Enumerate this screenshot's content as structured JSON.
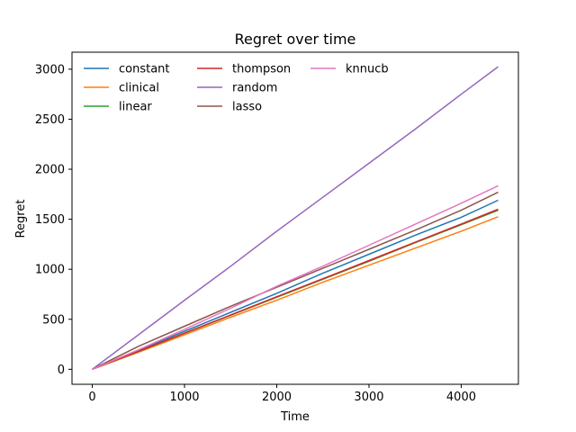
{
  "chart_data": {
    "type": "line",
    "title": "Regret over time",
    "xlabel": "Time",
    "ylabel": "Regret",
    "xlim": [
      -220,
      4620
    ],
    "ylim": [
      -150,
      3170
    ],
    "xticks": [
      0,
      1000,
      2000,
      3000,
      4000
    ],
    "yticks": [
      0,
      500,
      1000,
      1500,
      2000,
      2500,
      3000
    ],
    "xtick_labels": [
      "0",
      "1000",
      "2000",
      "3000",
      "4000"
    ],
    "ytick_labels": [
      "0",
      "500",
      "1000",
      "1500",
      "2000",
      "2500",
      "3000"
    ],
    "grid": false,
    "legend": {
      "placement": "top-left",
      "columns": 3
    },
    "series": [
      {
        "name": "constant",
        "color": "#1f77b4",
        "x": [
          0,
          500,
          1000,
          1500,
          2000,
          2500,
          3000,
          3500,
          4000,
          4400
        ],
        "y": [
          0,
          190,
          380,
          570,
          760,
          960,
          1150,
          1340,
          1520,
          1690
        ]
      },
      {
        "name": "clinical",
        "color": "#ff7f0e",
        "x": [
          0,
          500,
          1000,
          1500,
          2000,
          2500,
          3000,
          3500,
          4000,
          4400
        ],
        "y": [
          0,
          170,
          345,
          520,
          690,
          870,
          1040,
          1210,
          1380,
          1525
        ]
      },
      {
        "name": "linear",
        "color": "#2ca02c",
        "x": [
          0,
          500,
          1000,
          1500,
          2000,
          2500,
          3000,
          3500,
          4000,
          4400
        ],
        "y": [
          0,
          178,
          360,
          540,
          720,
          900,
          1080,
          1265,
          1445,
          1590
        ]
      },
      {
        "name": "thompson",
        "color": "#d62728",
        "x": [
          0,
          500,
          1000,
          1500,
          2000,
          2500,
          3000,
          3500,
          4000,
          4400
        ],
        "y": [
          0,
          180,
          362,
          543,
          725,
          905,
          1087,
          1270,
          1452,
          1600
        ]
      },
      {
        "name": "random",
        "color": "#9467bd",
        "x": [
          0,
          500,
          1000,
          1500,
          2000,
          2500,
          3000,
          3500,
          4000,
          4400
        ],
        "y": [
          0,
          345,
          690,
          1030,
          1380,
          1720,
          2060,
          2400,
          2750,
          3025
        ]
      },
      {
        "name": "lasso",
        "color": "#8c564b",
        "x": [
          0,
          500,
          1000,
          1500,
          2000,
          2500,
          3000,
          3500,
          4000,
          4400
        ],
        "y": [
          0,
          230,
          430,
          630,
          820,
          1010,
          1200,
          1390,
          1590,
          1770
        ]
      },
      {
        "name": "knnucb",
        "color": "#e377c2",
        "x": [
          0,
          500,
          1000,
          1500,
          2000,
          2500,
          3000,
          3500,
          4000,
          4400
        ],
        "y": [
          0,
          195,
          400,
          610,
          830,
          1030,
          1240,
          1450,
          1660,
          1835
        ]
      }
    ]
  }
}
